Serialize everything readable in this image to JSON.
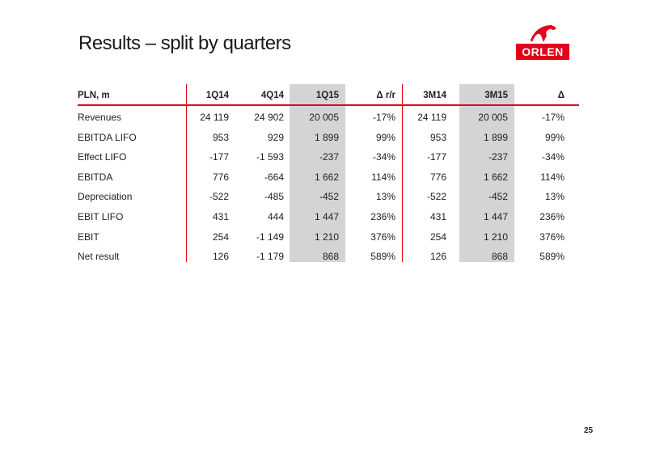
{
  "title": "Results – split by quarters",
  "logo": {
    "text": "ORLEN",
    "brand_color": "#e3001b"
  },
  "table": {
    "headers": [
      "PLN, m",
      "1Q14",
      "4Q14",
      "1Q15",
      "Δ r/r",
      "3M14",
      "3M15",
      "Δ"
    ],
    "rows": [
      {
        "label": "Revenues",
        "values": [
          "24 119",
          "24 902",
          "20 005",
          "-17%",
          "24 119",
          "20 005",
          "-17%"
        ]
      },
      {
        "label": "EBITDA LIFO",
        "values": [
          "953",
          "929",
          "1 899",
          "99%",
          "953",
          "1 899",
          "99%"
        ]
      },
      {
        "label": "Effect LIFO",
        "values": [
          "-177",
          "-1 593",
          "-237",
          "-34%",
          "-177",
          "-237",
          "-34%"
        ]
      },
      {
        "label": "EBITDA",
        "values": [
          "776",
          "-664",
          "1 662",
          "114%",
          "776",
          "1 662",
          "114%"
        ]
      },
      {
        "label": "Depreciation",
        "values": [
          "-522",
          "-485",
          "-452",
          "13%",
          "-522",
          "-452",
          "13%"
        ]
      },
      {
        "label": "EBIT LIFO",
        "values": [
          "431",
          "444",
          "1 447",
          "236%",
          "431",
          "1 447",
          "236%"
        ]
      },
      {
        "label": "EBIT",
        "values": [
          "254",
          "-1 149",
          "1 210",
          "376%",
          "254",
          "1 210",
          "376%"
        ]
      },
      {
        "label": "Net result",
        "values": [
          "126",
          "-1 179",
          "868",
          "589%",
          "126",
          "868",
          "589%"
        ]
      }
    ],
    "highlight_color": "#d4d4d4",
    "accent_color": "#e3001b"
  },
  "page_number": "25"
}
